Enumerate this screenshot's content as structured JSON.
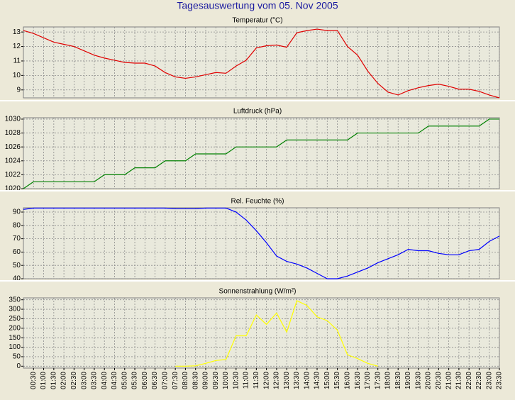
{
  "title": "Tagesauswertung vom 05. Nov 2005",
  "chart_data": [
    {
      "type": "line",
      "title": "Temperatur (°C)",
      "color": "#e00000",
      "values": [
        13.1,
        12.9,
        12.6,
        12.3,
        12.15,
        12.0,
        11.7,
        11.4,
        11.2,
        11.05,
        10.9,
        10.85,
        10.85,
        10.65,
        10.2,
        9.9,
        9.8,
        9.9,
        10.05,
        10.2,
        10.15,
        10.65,
        11.05,
        11.9,
        12.05,
        12.1,
        11.95,
        12.95,
        13.1,
        13.2,
        13.1,
        13.1,
        12.0,
        11.4,
        10.3,
        9.45,
        8.85,
        8.65,
        8.95,
        9.15,
        9.3,
        9.4,
        9.25,
        9.05,
        9.05,
        8.9,
        8.65,
        8.45
      ],
      "ylim": [
        8.45,
        13.35
      ],
      "yticks": [
        9,
        10,
        11,
        12,
        13
      ],
      "grid": true
    },
    {
      "type": "line",
      "title": "Luftdruck (hPa)",
      "color": "#008000",
      "values": [
        1020,
        1021,
        1021,
        1021,
        1021,
        1021,
        1021,
        1021,
        1022,
        1022,
        1022,
        1023,
        1023,
        1023,
        1024,
        1024,
        1024,
        1025,
        1025,
        1025,
        1025,
        1026,
        1026,
        1026,
        1026,
        1026,
        1027,
        1027,
        1027,
        1027,
        1027,
        1027,
        1027,
        1028,
        1028,
        1028,
        1028,
        1028,
        1028,
        1028,
        1029,
        1029,
        1029,
        1029,
        1029,
        1029,
        1030,
        1030
      ],
      "ylim": [
        1020,
        1030.2
      ],
      "yticks": [
        1020,
        1022,
        1024,
        1026,
        1028,
        1030
      ],
      "grid": true
    },
    {
      "type": "line",
      "title": "Rel. Feuchte (%)",
      "color": "#0000ff",
      "values": [
        92,
        93,
        93,
        93,
        93,
        93,
        93,
        93,
        93,
        93,
        93,
        93,
        93,
        93,
        93,
        92.5,
        92.5,
        92.5,
        93,
        93,
        93,
        90,
        84,
        76,
        67,
        57,
        53,
        51,
        48,
        44,
        40,
        40,
        42,
        45,
        48,
        52,
        55,
        58,
        62,
        61,
        61,
        59,
        58,
        58,
        61,
        62,
        68,
        72
      ],
      "ylim": [
        40,
        93.2
      ],
      "yticks": [
        40,
        50,
        60,
        70,
        80,
        90
      ],
      "grid": true
    },
    {
      "type": "line",
      "title": "Sonnenstrahlung (W/m²)",
      "color": "#ffff00",
      "values": [
        null,
        null,
        null,
        null,
        null,
        null,
        null,
        null,
        null,
        null,
        null,
        null,
        null,
        null,
        null,
        0,
        0,
        2,
        15,
        30,
        35,
        160,
        160,
        270,
        220,
        280,
        180,
        345,
        320,
        260,
        240,
        190,
        60,
        40,
        15,
        0,
        null,
        null,
        null,
        null,
        null,
        null,
        null,
        null,
        null,
        null,
        null,
        null
      ],
      "ylim": [
        -10,
        360
      ],
      "yticks": [
        0,
        50,
        100,
        150,
        200,
        250,
        300,
        350
      ],
      "grid": true,
      "categories": [
        null,
        "00:30",
        "01:00",
        "01:30",
        "02:00",
        "02:30",
        "03:00",
        "03:30",
        "04:00",
        "04:30",
        "05:00",
        "05:30",
        "06:00",
        "06:30",
        "07:00",
        "07:30",
        "08:00",
        "08:30",
        "09:00",
        "09:30",
        "10:00",
        "10:30",
        "11:00",
        "11:30",
        "12:00",
        "12:30",
        "13:00",
        "13:30",
        "14:00",
        "14:30",
        "15:00",
        "15:30",
        "16:00",
        "16:30",
        "17:00",
        "17:30",
        "18:00",
        "18:30",
        "19:00",
        "19:30",
        "20:00",
        "20:30",
        "21:00",
        "21:30",
        "22:00",
        "22:30",
        "23:00",
        "23:30"
      ]
    }
  ]
}
